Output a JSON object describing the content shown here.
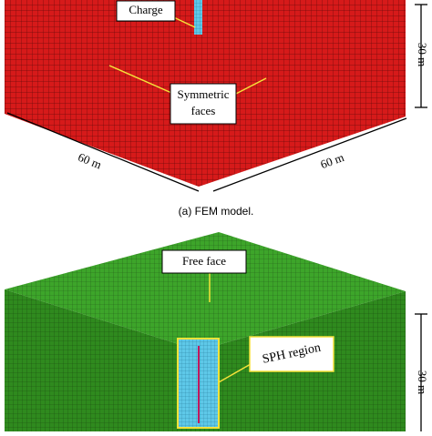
{
  "fem": {
    "charge": "Charge",
    "symmetric": [
      "Symmetric",
      "faces"
    ],
    "height": "30 m",
    "width_left": "60 m",
    "width_right": "60 m",
    "caption": "(a) FEM model."
  },
  "sph": {
    "free_face": "Free face",
    "region": "SPH region",
    "height": "30 m"
  }
}
